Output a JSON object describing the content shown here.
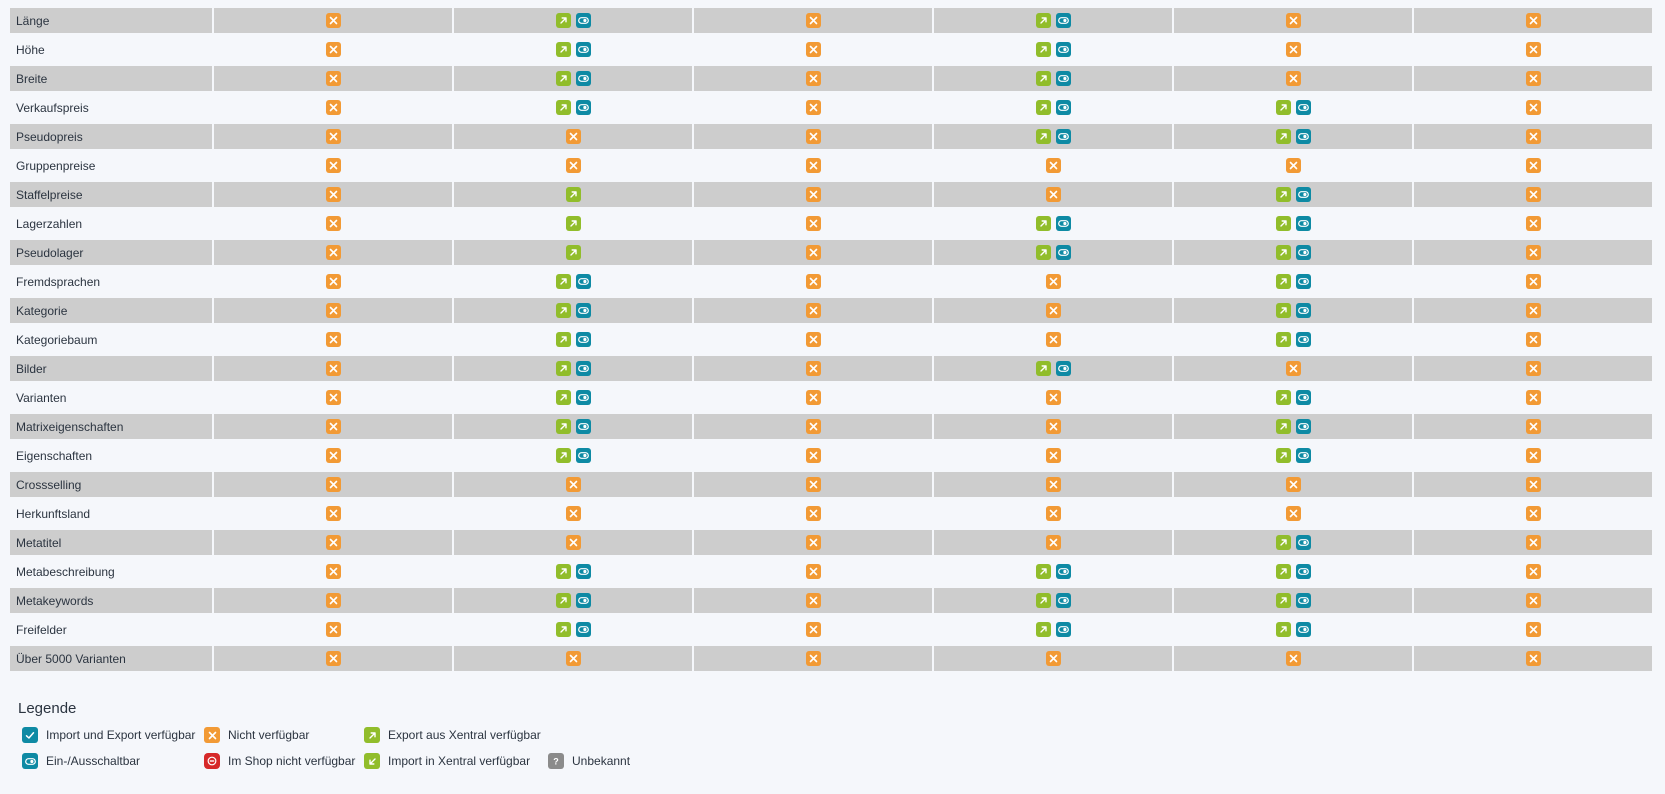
{
  "table": {
    "rows": [
      {
        "label": "Länge",
        "cells": [
          "x",
          "et",
          "x",
          "et",
          "x",
          "x"
        ]
      },
      {
        "label": "Höhe",
        "cells": [
          "x",
          "et",
          "x",
          "et",
          "x",
          "x"
        ]
      },
      {
        "label": "Breite",
        "cells": [
          "x",
          "et",
          "x",
          "et",
          "x",
          "x"
        ]
      },
      {
        "label": "Verkaufspreis",
        "cells": [
          "x",
          "et",
          "x",
          "et",
          "et",
          "x"
        ]
      },
      {
        "label": "Pseudopreis",
        "cells": [
          "x",
          "x",
          "x",
          "et",
          "et",
          "x"
        ]
      },
      {
        "label": "Gruppenpreise",
        "cells": [
          "x",
          "x",
          "x",
          "x",
          "x",
          "x"
        ]
      },
      {
        "label": "Staffelpreise",
        "cells": [
          "x",
          "e",
          "x",
          "x",
          "et",
          "x"
        ]
      },
      {
        "label": "Lagerzahlen",
        "cells": [
          "x",
          "e",
          "x",
          "et",
          "et",
          "x"
        ]
      },
      {
        "label": "Pseudolager",
        "cells": [
          "x",
          "e",
          "x",
          "et",
          "et",
          "x"
        ]
      },
      {
        "label": "Fremdsprachen",
        "cells": [
          "x",
          "et",
          "x",
          "x",
          "et",
          "x"
        ]
      },
      {
        "label": "Kategorie",
        "cells": [
          "x",
          "et",
          "x",
          "x",
          "et",
          "x"
        ]
      },
      {
        "label": "Kategoriebaum",
        "cells": [
          "x",
          "et",
          "x",
          "x",
          "et",
          "x"
        ]
      },
      {
        "label": "Bilder",
        "cells": [
          "x",
          "et",
          "x",
          "et",
          "x",
          "x"
        ]
      },
      {
        "label": "Varianten",
        "cells": [
          "x",
          "et",
          "x",
          "x",
          "et",
          "x"
        ]
      },
      {
        "label": "Matrixeigenschaften",
        "cells": [
          "x",
          "et",
          "x",
          "x",
          "et",
          "x"
        ]
      },
      {
        "label": "Eigenschaften",
        "cells": [
          "x",
          "et",
          "x",
          "x",
          "et",
          "x"
        ]
      },
      {
        "label": "Crossselling",
        "cells": [
          "x",
          "x",
          "x",
          "x",
          "x",
          "x"
        ]
      },
      {
        "label": "Herkunftsland",
        "cells": [
          "x",
          "x",
          "x",
          "x",
          "x",
          "x"
        ]
      },
      {
        "label": "Metatitel",
        "cells": [
          "x",
          "x",
          "x",
          "x",
          "et",
          "x"
        ]
      },
      {
        "label": "Metabeschreibung",
        "cells": [
          "x",
          "et",
          "x",
          "et",
          "et",
          "x"
        ]
      },
      {
        "label": "Metakeywords",
        "cells": [
          "x",
          "et",
          "x",
          "et",
          "et",
          "x"
        ]
      },
      {
        "label": "Freifelder",
        "cells": [
          "x",
          "et",
          "x",
          "et",
          "et",
          "x"
        ]
      },
      {
        "label": "Über 5000 Varianten",
        "cells": [
          "x",
          "x",
          "x",
          "x",
          "x",
          "x"
        ]
      }
    ]
  },
  "legend": {
    "title": "Legende",
    "items": [
      {
        "icon": "checkmark-icon",
        "label": "Import und Export verfügbar"
      },
      {
        "icon": "cross-icon",
        "label": "Nicht verfügbar"
      },
      {
        "icon": "export-arrow-icon",
        "label": "Export aus Xentral verfügbar"
      },
      {
        "icon": "toggle-icon",
        "label": "Ein-/Ausschaltbar"
      },
      {
        "icon": "not-available-icon",
        "label": "Im Shop nicht verfügbar"
      },
      {
        "icon": "import-arrow-icon",
        "label": "Import in Xentral verfügbar"
      },
      {
        "icon": "question-icon",
        "label": "Unbekannt"
      }
    ]
  },
  "colors": {
    "orange": "#f29a35",
    "green": "#91bd2b",
    "teal": "#0e8aa4",
    "red": "#d62929",
    "gray": "#8b8b8b",
    "row_band": "#cdcdcd"
  }
}
